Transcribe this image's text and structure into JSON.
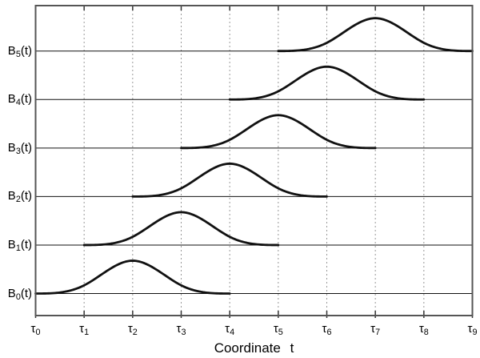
{
  "figure": {
    "xlabel": "Coordinate t",
    "colors": {
      "curve": "#111111",
      "baseline": "#111111",
      "frame": "#555555",
      "grid": "#999999",
      "tick": "#333333",
      "background": "#ffffff",
      "text": "#000000"
    }
  },
  "chart_data": {
    "type": "line",
    "title": "",
    "xlabel": "Coordinate t",
    "ylabel": "",
    "description": "Six shifted uniform cubic B-spline basis functions; each thick bell curve is nonzero only over four knot spans and is zero (flat thin baseline) elsewhere",
    "x_ticks": [
      {
        "sym": "τ",
        "sub": "0"
      },
      {
        "sym": "τ",
        "sub": "1"
      },
      {
        "sym": "τ",
        "sub": "2"
      },
      {
        "sym": "τ",
        "sub": "3"
      },
      {
        "sym": "τ",
        "sub": "4"
      },
      {
        "sym": "τ",
        "sub": "5"
      },
      {
        "sym": "τ",
        "sub": "6"
      },
      {
        "sym": "τ",
        "sub": "7"
      },
      {
        "sym": "τ",
        "sub": "8"
      },
      {
        "sym": "τ",
        "sub": "9"
      }
    ],
    "x_range_knots": [
      0,
      9
    ],
    "grid": {
      "vertical_dashed_at_knots": [
        1,
        2,
        3,
        4,
        5,
        6,
        7,
        8
      ],
      "horizontal_baseline_per_series": true
    },
    "series": [
      {
        "name": "B0(t)",
        "label": {
          "sym": "B",
          "sub": "0",
          "suffix": "(t)"
        },
        "row": 0,
        "support_knots": [
          0,
          4
        ],
        "peak_knot": 2,
        "peak_value": 0.667,
        "value_outside_support": 0
      },
      {
        "name": "B1(t)",
        "label": {
          "sym": "B",
          "sub": "1",
          "suffix": "(t)"
        },
        "row": 1,
        "support_knots": [
          1,
          5
        ],
        "peak_knot": 3,
        "peak_value": 0.667,
        "value_outside_support": 0
      },
      {
        "name": "B2(t)",
        "label": {
          "sym": "B",
          "sub": "2",
          "suffix": "(t)"
        },
        "row": 2,
        "support_knots": [
          2,
          6
        ],
        "peak_knot": 4,
        "peak_value": 0.667,
        "value_outside_support": 0
      },
      {
        "name": "B3(t)",
        "label": {
          "sym": "B",
          "sub": "3",
          "suffix": "(t)"
        },
        "row": 3,
        "support_knots": [
          3,
          7
        ],
        "peak_knot": 5,
        "peak_value": 0.667,
        "value_outside_support": 0
      },
      {
        "name": "B4(t)",
        "label": {
          "sym": "B",
          "sub": "4",
          "suffix": "(t)"
        },
        "row": 4,
        "support_knots": [
          4,
          8
        ],
        "peak_knot": 6,
        "peak_value": 0.667,
        "value_outside_support": 0
      },
      {
        "name": "B5(t)",
        "label": {
          "sym": "B",
          "sub": "5",
          "suffix": "(t)"
        },
        "row": 5,
        "support_knots": [
          5,
          9
        ],
        "peak_knot": 7,
        "peak_value": 0.667,
        "value_outside_support": 0
      }
    ],
    "legend": "none"
  }
}
